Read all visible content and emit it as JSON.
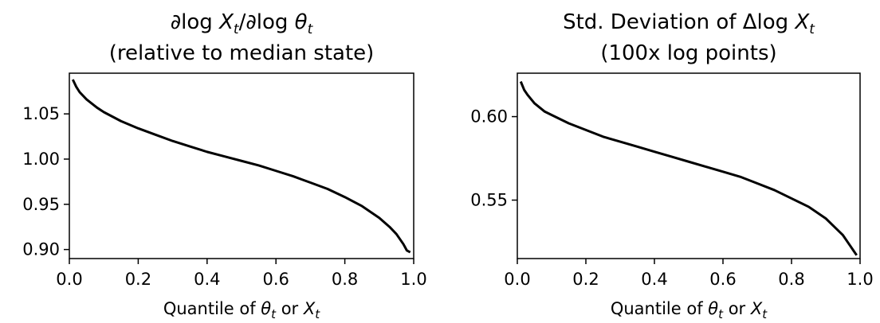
{
  "chart_data": [
    {
      "type": "line",
      "title": [
        "∂log X_t/∂log θ_t",
        "(relative to median state)"
      ],
      "xlabel": "Quantile of θ_t or X_t",
      "ylabel": "",
      "xlim": [
        0.0,
        1.0
      ],
      "ylim": [
        0.89,
        1.095
      ],
      "xticks": [
        "0.0",
        "0.2",
        "0.4",
        "0.6",
        "0.8",
        "1.0"
      ],
      "yticks": [
        "0.90",
        "0.95",
        "1.00",
        "1.05"
      ],
      "grid": false,
      "series": [
        {
          "color": "#000000",
          "x": [
            0.01,
            0.02,
            0.03,
            0.05,
            0.08,
            0.1,
            0.15,
            0.2,
            0.25,
            0.3,
            0.35,
            0.4,
            0.45,
            0.5,
            0.55,
            0.6,
            0.65,
            0.7,
            0.75,
            0.8,
            0.85,
            0.9,
            0.93,
            0.95,
            0.97,
            0.98,
            0.99
          ],
          "y": [
            1.088,
            1.08,
            1.074,
            1.066,
            1.057,
            1.052,
            1.042,
            1.034,
            1.027,
            1.02,
            1.014,
            1.008,
            1.003,
            0.998,
            0.993,
            0.987,
            0.981,
            0.974,
            0.967,
            0.958,
            0.948,
            0.935,
            0.925,
            0.917,
            0.906,
            0.899,
            0.897
          ]
        }
      ]
    },
    {
      "type": "line",
      "title": [
        "Std. Deviation of Δlog X_t",
        "(100x log points)"
      ],
      "xlabel": "Quantile of θ_t or X_t",
      "ylabel": "",
      "xlim": [
        0.0,
        1.0
      ],
      "ylim": [
        0.515,
        0.626
      ],
      "xticks": [
        "0.0",
        "0.2",
        "0.4",
        "0.6",
        "0.8",
        "1.0"
      ],
      "yticks": [
        "0.55",
        "0.60"
      ],
      "grid": false,
      "series": [
        {
          "color": "#000000",
          "x": [
            0.01,
            0.02,
            0.03,
            0.05,
            0.08,
            0.1,
            0.15,
            0.2,
            0.25,
            0.3,
            0.35,
            0.4,
            0.45,
            0.5,
            0.55,
            0.6,
            0.65,
            0.7,
            0.75,
            0.8,
            0.85,
            0.9,
            0.93,
            0.95,
            0.97,
            0.98,
            0.99
          ],
          "y": [
            0.621,
            0.616,
            0.613,
            0.608,
            0.603,
            0.601,
            0.596,
            0.592,
            0.588,
            0.585,
            0.582,
            0.579,
            0.576,
            0.573,
            0.57,
            0.567,
            0.564,
            0.56,
            0.556,
            0.551,
            0.546,
            0.539,
            0.533,
            0.529,
            0.523,
            0.52,
            0.517
          ]
        }
      ]
    }
  ]
}
